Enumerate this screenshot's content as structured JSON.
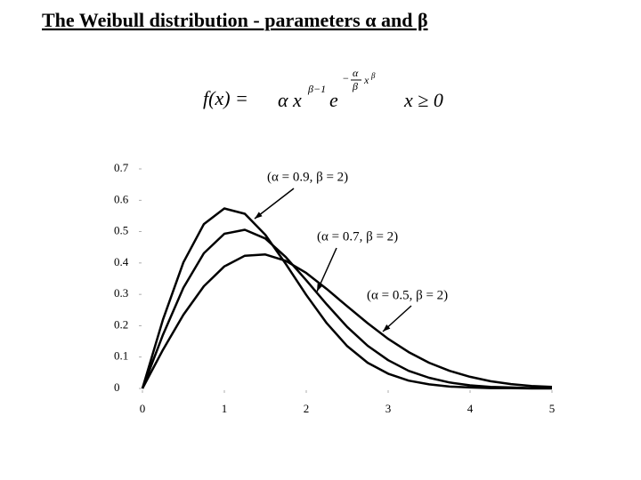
{
  "chart_data": {
    "type": "line",
    "title": "The Weibull distribution - parameters α and β",
    "formula": {
      "lhs": "f(x) =",
      "term": "α x",
      "power": "β−1",
      "exp_base": "e",
      "exp_sign": "−",
      "exp_num": "α",
      "exp_den": "β",
      "exp_var": "x",
      "exp_var_power": "β",
      "domain": "x ≥ 0"
    },
    "x": [
      0,
      0.25,
      0.5,
      0.75,
      1,
      1.25,
      1.5,
      1.75,
      2,
      2.25,
      2.5,
      2.75,
      3,
      3.25,
      3.5,
      3.75,
      4,
      4.25,
      4.5,
      4.75,
      5
    ],
    "series": [
      {
        "name": "(α = 0.9, β = 2)",
        "color": "#000000",
        "values": [
          0,
          0.219,
          0.402,
          0.524,
          0.574,
          0.557,
          0.49,
          0.397,
          0.298,
          0.208,
          0.135,
          0.082,
          0.047,
          0.025,
          0.013,
          0.006,
          0.003,
          0.001,
          0.001,
          0,
          0
        ]
      },
      {
        "name": "(α = 0.7, β = 2)",
        "color": "#000000",
        "values": [
          0,
          0.171,
          0.321,
          0.431,
          0.493,
          0.506,
          0.478,
          0.419,
          0.345,
          0.268,
          0.196,
          0.136,
          0.09,
          0.056,
          0.034,
          0.019,
          0.01,
          0.005,
          0.003,
          0.001,
          0.001
        ]
      },
      {
        "name": "(α = 0.5, β = 2)",
        "color": "#000000",
        "values": [
          0,
          0.123,
          0.235,
          0.326,
          0.389,
          0.423,
          0.427,
          0.407,
          0.368,
          0.317,
          0.262,
          0.208,
          0.158,
          0.116,
          0.082,
          0.056,
          0.037,
          0.023,
          0.014,
          0.008,
          0.005
        ]
      }
    ],
    "xlim": [
      0,
      5
    ],
    "xticks": [
      0,
      1,
      2,
      3,
      4,
      5
    ],
    "ylim": [
      0,
      0.7
    ],
    "yticks": [
      0,
      0.1,
      0.2,
      0.3,
      0.4,
      0.5,
      0.6,
      0.7
    ]
  }
}
